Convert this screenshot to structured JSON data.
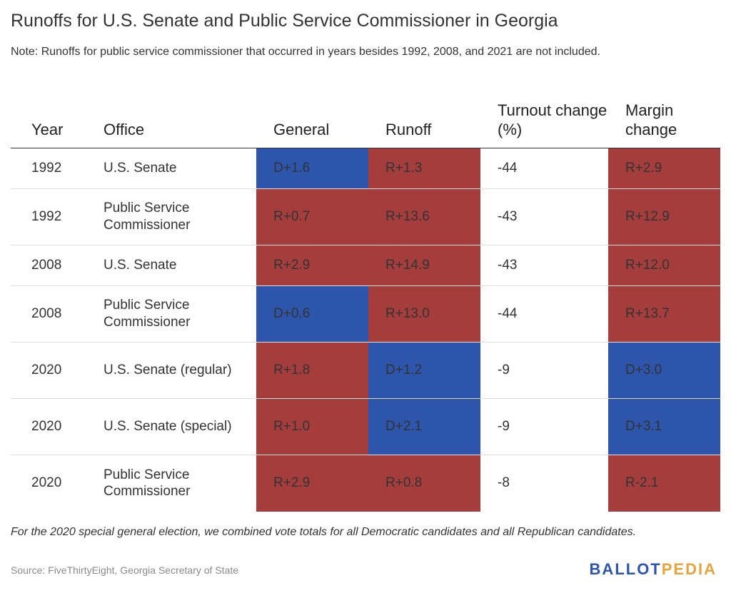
{
  "title": "Runoffs for U.S. Senate and Public Service Commissioner in Georgia",
  "note": "Note: Runoffs for public service commissioner that occurred in years besides 1992, 2008, and 2021 are not included.",
  "colors": {
    "R": "#a63d3d",
    "D": "#2d55ab"
  },
  "chart_data": {
    "type": "table",
    "columns": [
      "Year",
      "Office",
      "General",
      "Runoff",
      "Turnout change (%)",
      "Margin change"
    ],
    "rows": [
      {
        "year": "1992",
        "office": "U.S. Senate",
        "general": "D+1.6",
        "runoff": "R+1.3",
        "turnout": "-44",
        "margin": "R+2.9"
      },
      {
        "year": "1992",
        "office": "Public Service Commissioner",
        "general": "R+0.7",
        "runoff": "R+13.6",
        "turnout": "-43",
        "margin": "R+12.9"
      },
      {
        "year": "2008",
        "office": "U.S. Senate",
        "general": "R+2.9",
        "runoff": "R+14.9",
        "turnout": "-43",
        "margin": "R+12.0"
      },
      {
        "year": "2008",
        "office": "Public Service Commissioner",
        "general": "D+0.6",
        "runoff": "R+13.0",
        "turnout": "-44",
        "margin": "R+13.7"
      },
      {
        "year": "2020",
        "office": "U.S. Senate (regular)",
        "general": "R+1.8",
        "runoff": "D+1.2",
        "turnout": "-9",
        "margin": "D+3.0"
      },
      {
        "year": "2020",
        "office": "U.S. Senate (special)",
        "general": "R+1.0",
        "runoff": "D+2.1",
        "turnout": "-9",
        "margin": "D+3.1"
      },
      {
        "year": "2020",
        "office": "Public Service Commissioner",
        "general": "R+2.9",
        "runoff": "R+0.8",
        "turnout": "-8",
        "margin": "R-2.1"
      }
    ]
  },
  "footnote": "For the 2020 special general election, we combined vote totals for all Democratic candidates and all Republican candidates.",
  "source": "Source: FiveThirtyEight, Georgia Secretary of State",
  "logo": {
    "part1": "BALLOT",
    "part2": "PEDIA"
  }
}
